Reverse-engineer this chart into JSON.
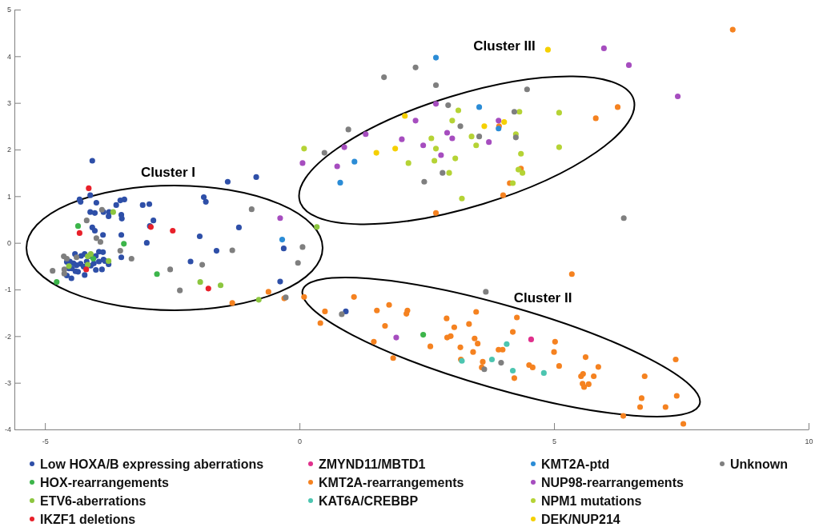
{
  "chart_data": {
    "type": "scatter",
    "xlim": [
      -5.6,
      10
    ],
    "ylim": [
      -4,
      5
    ],
    "xticks": [
      -5,
      0,
      5,
      10
    ],
    "yticks": [
      -4,
      -3,
      -2,
      -1,
      0,
      1,
      2,
      3,
      4,
      5
    ],
    "grid": false,
    "legend": "bottom",
    "marker": "circle",
    "annotations": [
      "Cluster I",
      "Cluster II",
      "Cluster III"
    ],
    "series": [
      {
        "name": "Low HOXA/B expressing aberrations",
        "color": "#2e4fa8",
        "x": [
          -4.07,
          -4.11,
          -4.32,
          -4.3,
          -3.99,
          -4.11,
          -4.02,
          -3.85,
          -3.74,
          -3.75,
          -3.6,
          -3.52,
          -3.44,
          -3.5,
          -3.49,
          -4.07,
          -4.02,
          -3.86,
          -3.5,
          -3.5,
          -3.08,
          -2.95,
          -2.87,
          -2.94,
          -3.0,
          -1.88,
          -1.84,
          -1.41,
          -0.85,
          -1.19,
          -1.96,
          -1.63,
          -2.14,
          -0.31,
          -0.38,
          -4.41,
          -4.29,
          -4.22,
          -4.14,
          -4.57,
          -4.51,
          -4.44,
          -4.38,
          -4.3,
          -4.24,
          -4.18,
          -4.1,
          -4.04,
          -4.0,
          -3.94,
          -3.94,
          -3.86,
          -3.85,
          -3.82,
          -3.88,
          -3.75,
          -4.57,
          -4.48,
          -4.35,
          -4.22,
          -4.47,
          -4.53,
          -4.1,
          -4.0,
          -4.4,
          0.91
        ],
        "values": [
          1.76,
          1.02,
          0.93,
          0.88,
          0.86,
          0.66,
          0.64,
          0.66,
          0.66,
          0.57,
          0.81,
          0.91,
          0.93,
          0.6,
          0.52,
          0.33,
          0.26,
          0.17,
          0.17,
          -0.31,
          0.81,
          0.83,
          0.48,
          0.36,
          0.0,
          0.98,
          0.88,
          1.31,
          1.41,
          0.33,
          0.14,
          -0.17,
          -0.4,
          -0.12,
          -0.83,
          -0.24,
          -0.28,
          -0.24,
          -0.29,
          -0.41,
          -0.4,
          -0.44,
          -0.48,
          -0.45,
          -0.51,
          -0.4,
          -0.49,
          -0.44,
          -0.58,
          -0.4,
          -0.19,
          -0.2,
          -0.36,
          -0.39,
          -0.57,
          -0.46,
          -0.7,
          -0.76,
          -0.62,
          -0.69,
          -0.55,
          -0.55,
          -0.27,
          -0.28,
          -0.61,
          -1.47
        ]
      },
      {
        "name": "HOX-rearrangements",
        "color": "#3cb54a",
        "x": [
          -4.35,
          -3.45,
          -4.77,
          -2.8,
          2.43,
          -4.05
        ],
        "values": [
          0.36,
          -0.02,
          -0.84,
          -0.67,
          -1.97,
          -0.34
        ]
      },
      {
        "name": "ETV6-aberrations",
        "color": "#8cc63f",
        "x": [
          -3.66,
          -3.75,
          -4.16,
          -4.1,
          -4.16,
          -4.53,
          -1.95,
          -1.55,
          -0.8,
          0.34
        ],
        "values": [
          0.66,
          -0.39,
          -0.29,
          -0.24,
          -0.47,
          -0.5,
          -0.84,
          -0.91,
          -1.22,
          0.34
        ]
      },
      {
        "name": "IKZF1 deletions",
        "color": "#e8202a",
        "x": [
          -4.14,
          -4.32,
          -2.92,
          -2.49,
          -4.19,
          -1.79
        ],
        "values": [
          1.17,
          0.21,
          0.34,
          0.26,
          -0.57,
          -0.98
        ]
      },
      {
        "name": "ZMYND11/MBTD1",
        "color": "#e0308c",
        "x": [
          4.55
        ],
        "values": [
          -2.07
        ]
      },
      {
        "name": "KMT2A-rearrangements",
        "color": "#f58220",
        "x": [
          -1.32,
          -0.61,
          -0.3,
          0.09,
          0.5,
          3.92,
          4.35,
          4.13,
          4.0,
          2.68,
          8.51,
          6.25,
          5.82,
          5.35,
          1.07,
          0.41,
          1.52,
          1.76,
          2.12,
          2.1,
          1.68,
          1.46,
          1.84,
          2.57,
          2.89,
          3.04,
          2.9,
          2.97,
          3.33,
          3.47,
          3.16,
          3.17,
          3.44,
          3.5,
          3.41,
          3.6,
          3.58,
          3.91,
          3.99,
          4.19,
          4.27,
          4.22,
          4.51,
          4.58,
          5.02,
          5.0,
          5.1,
          5.62,
          5.87,
          5.53,
          5.57,
          5.78,
          5.56,
          5.59,
          5.68,
          6.78,
          7.39,
          6.72,
          6.69,
          7.41,
          7.19,
          6.36,
          7.54
        ],
        "values": [
          -1.29,
          -1.05,
          -1.19,
          -1.16,
          -1.47,
          2.5,
          1.59,
          1.28,
          1.02,
          0.64,
          4.57,
          2.91,
          2.67,
          -0.67,
          -1.16,
          -1.72,
          -1.45,
          -1.33,
          -1.45,
          -1.52,
          -1.78,
          -2.12,
          -2.47,
          -2.22,
          -1.62,
          -1.81,
          -2.03,
          -2.0,
          -1.74,
          -1.48,
          -2.24,
          -2.5,
          -2.05,
          -2.16,
          -2.34,
          -2.55,
          -2.67,
          -2.29,
          -2.29,
          -1.91,
          -1.6,
          -2.9,
          -2.62,
          -2.67,
          -2.12,
          -2.34,
          -2.64,
          -2.45,
          -2.66,
          -2.86,
          -2.81,
          -2.86,
          -3.02,
          -3.09,
          -3.03,
          -2.86,
          -2.5,
          -3.33,
          -3.52,
          -3.28,
          -3.52,
          -3.71,
          -3.88
        ]
      },
      {
        "name": "KAT6A/CREBBP",
        "color": "#4cc5b0",
        "x": [
          4.07,
          3.78,
          3.19,
          4.19,
          4.8
        ],
        "values": [
          -2.17,
          -2.5,
          -2.53,
          -2.74,
          -2.79
        ]
      },
      {
        "name": "KMT2A-ptd",
        "color": "#2b8cd6",
        "x": [
          -0.34,
          2.68,
          3.53,
          3.91,
          1.08,
          0.8
        ],
        "values": [
          0.07,
          3.97,
          2.91,
          2.45,
          1.74,
          1.29
        ]
      },
      {
        "name": "NUP98-rearrangements",
        "color": "#a64dbf",
        "x": [
          -0.38,
          2.68,
          2.28,
          1.3,
          2.01,
          2.9,
          3.0,
          2.43,
          0.88,
          2.78,
          3.72,
          3.91,
          0.06,
          0.74,
          5.98,
          6.47,
          7.43,
          1.9
        ],
        "values": [
          0.53,
          2.98,
          2.62,
          2.33,
          2.22,
          2.36,
          2.24,
          2.09,
          2.05,
          1.88,
          2.16,
          2.62,
          1.71,
          1.64,
          4.17,
          3.81,
          3.14,
          -2.03
        ]
      },
      {
        "name": "NPM1 mutations",
        "color": "#b5d335",
        "x": [
          0.09,
          3.12,
          3.0,
          2.59,
          2.68,
          3.06,
          2.65,
          2.14,
          3.38,
          3.47,
          4.32,
          4.25,
          4.35,
          4.3,
          4.38,
          4.19,
          3.19,
          5.1,
          5.1,
          2.94
        ],
        "values": [
          2.02,
          2.84,
          2.62,
          2.24,
          2.02,
          1.81,
          1.76,
          1.71,
          2.28,
          2.09,
          2.81,
          2.33,
          1.91,
          1.57,
          1.5,
          1.28,
          0.95,
          2.79,
          2.05,
          1.5
        ]
      },
      {
        "name": "DEK/NUP214",
        "color": "#f5d000",
        "x": [
          4.88,
          2.07,
          1.51,
          1.88,
          3.63,
          4.02
        ],
        "values": [
          4.14,
          2.72,
          1.93,
          2.02,
          2.5,
          2.59
        ]
      },
      {
        "name": "Unknown",
        "color": "#7f7f7f",
        "x": [
          -3.88,
          -4.18,
          -3.99,
          -3.91,
          -3.52,
          -3.3,
          -4.63,
          -4.57,
          -4.85,
          -4.62,
          -4.62,
          -4.38,
          -2.54,
          -2.35,
          -1.91,
          -1.32,
          -0.94,
          0.06,
          -0.03,
          -0.27,
          1.66,
          2.28,
          2.68,
          2.92,
          3.16,
          0.96,
          0.49,
          3.53,
          4.22,
          4.25,
          4.47,
          2.81,
          2.45,
          6.37,
          3.66,
          0.83,
          3.96,
          3.63
        ],
        "values": [
          0.71,
          0.48,
          0.1,
          0.02,
          -0.17,
          -0.34,
          -0.29,
          -0.34,
          -0.6,
          -0.57,
          -0.66,
          -0.31,
          -0.57,
          -1.02,
          -0.47,
          -0.16,
          0.72,
          -0.09,
          -0.43,
          -1.17,
          3.55,
          3.76,
          3.38,
          2.95,
          2.5,
          2.43,
          1.93,
          2.28,
          2.81,
          2.26,
          3.29,
          1.5,
          1.31,
          0.53,
          -1.05,
          -1.53,
          -2.57,
          -2.71
        ]
      }
    ]
  }
}
